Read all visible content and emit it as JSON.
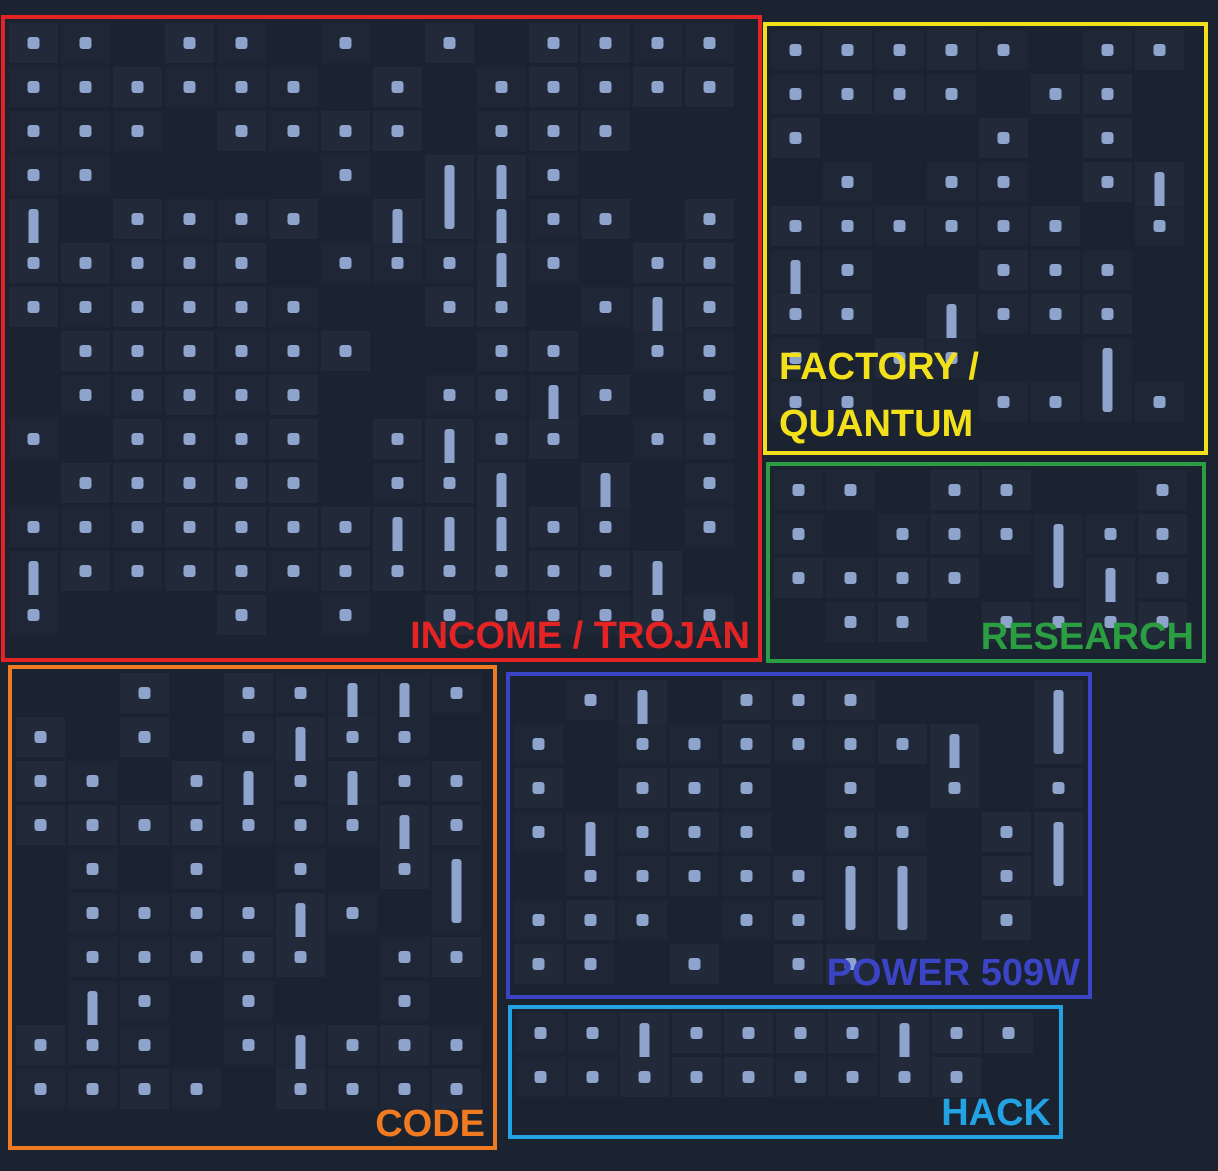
{
  "regions": [
    {
      "name": "income",
      "label_lines": [
        "INCOME / TROJAN"
      ],
      "color": "#e42424",
      "align": "right"
    },
    {
      "name": "factory",
      "label_lines": [
        "FACTORY /",
        "QUANTUM"
      ],
      "color": "#f2e01a",
      "align": "left"
    },
    {
      "name": "research",
      "label_lines": [
        "RESEARCH"
      ],
      "color": "#2a9e40",
      "align": "right"
    },
    {
      "name": "code",
      "label_lines": [
        "CODE"
      ],
      "color": "#f07a22",
      "align": "right"
    },
    {
      "name": "power",
      "label_lines": [
        "POWER 509W"
      ],
      "color": "#3a44c4",
      "align": "right"
    },
    {
      "name": "hack",
      "label_lines": [
        "HACK"
      ],
      "color": "#22a2e2",
      "align": "right"
    }
  ]
}
